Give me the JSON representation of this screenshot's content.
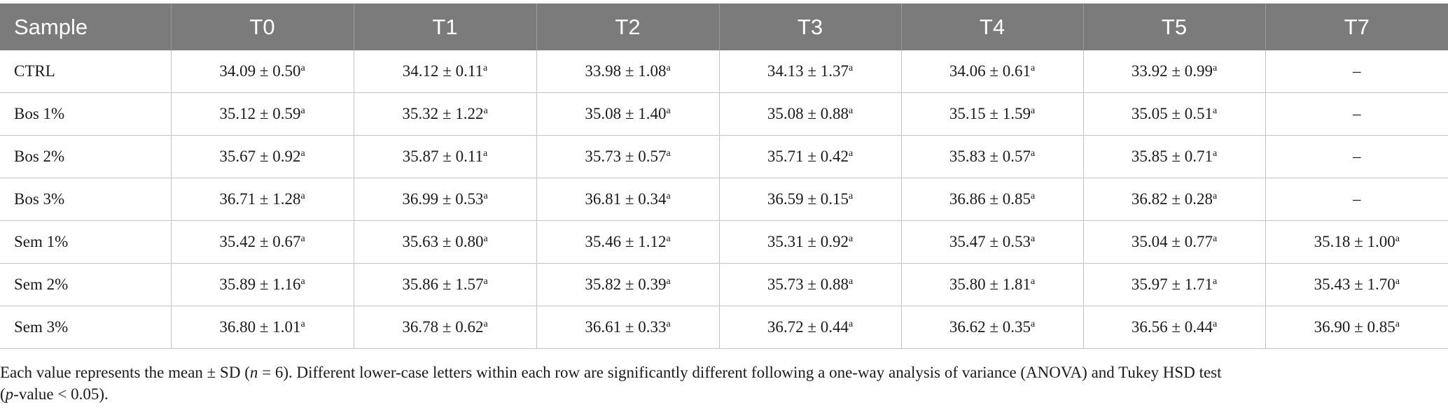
{
  "table": {
    "headers": [
      "Sample",
      "T0",
      "T1",
      "T2",
      "T3",
      "T4",
      "T5",
      "T7"
    ],
    "rows": [
      {
        "label": "CTRL",
        "cells": [
          [
            "34.09 ± 0.50",
            "a"
          ],
          [
            "34.12 ± 0.11",
            "a"
          ],
          [
            "33.98 ± 1.08",
            "a"
          ],
          [
            "34.13 ± 1.37",
            "a"
          ],
          [
            "34.06 ± 0.61",
            "a"
          ],
          [
            "33.92 ± 0.99",
            "a"
          ],
          [
            "–",
            ""
          ]
        ]
      },
      {
        "label": "Bos 1%",
        "cells": [
          [
            "35.12 ± 0.59",
            "a"
          ],
          [
            "35.32 ± 1.22",
            "a"
          ],
          [
            "35.08 ± 1.40",
            "a"
          ],
          [
            "35.08 ± 0.88",
            "a"
          ],
          [
            "35.15 ± 1.59",
            "a"
          ],
          [
            "35.05 ± 0.51",
            "a"
          ],
          [
            "–",
            ""
          ]
        ]
      },
      {
        "label": "Bos 2%",
        "cells": [
          [
            "35.67 ± 0.92",
            "a"
          ],
          [
            "35.87 ± 0.11",
            "a"
          ],
          [
            "35.73 ± 0.57",
            "a"
          ],
          [
            "35.71 ± 0.42",
            "a"
          ],
          [
            "35.83 ± 0.57",
            "a"
          ],
          [
            "35.85 ± 0.71",
            "a"
          ],
          [
            "–",
            ""
          ]
        ]
      },
      {
        "label": "Bos 3%",
        "cells": [
          [
            "36.71 ± 1.28",
            "a"
          ],
          [
            "36.99 ± 0.53",
            "a"
          ],
          [
            "36.81 ± 0.34",
            "a"
          ],
          [
            "36.59 ± 0.15",
            "a"
          ],
          [
            "36.86 ± 0.85",
            "a"
          ],
          [
            "36.82 ± 0.28",
            "a"
          ],
          [
            "–",
            ""
          ]
        ]
      },
      {
        "label": "Sem 1%",
        "cells": [
          [
            "35.42 ± 0.67",
            "a"
          ],
          [
            "35.63 ± 0.80",
            "a"
          ],
          [
            "35.46 ± 1.12",
            "a"
          ],
          [
            "35.31 ± 0.92",
            "a"
          ],
          [
            "35.47 ± 0.53",
            "a"
          ],
          [
            "35.04 ± 0.77",
            "a"
          ],
          [
            "35.18 ± 1.00",
            "a"
          ]
        ]
      },
      {
        "label": "Sem 2%",
        "cells": [
          [
            "35.89 ± 1.16",
            "a"
          ],
          [
            "35.86 ± 1.57",
            "a"
          ],
          [
            "35.82 ± 0.39",
            "a"
          ],
          [
            "35.73 ± 0.88",
            "a"
          ],
          [
            "35.80 ± 1.81",
            "a"
          ],
          [
            "35.97 ± 1.71",
            "a"
          ],
          [
            "35.43 ± 1.70",
            "a"
          ]
        ]
      },
      {
        "label": "Sem 3%",
        "cells": [
          [
            "36.80 ± 1.01",
            "a"
          ],
          [
            "36.78 ± 0.62",
            "a"
          ],
          [
            "36.61 ± 0.33",
            "a"
          ],
          [
            "36.72 ± 0.44",
            "a"
          ],
          [
            "36.62 ± 0.35",
            "a"
          ],
          [
            "36.56 ± 0.44",
            "a"
          ],
          [
            "36.90 ± 0.85",
            "a"
          ]
        ]
      }
    ]
  },
  "footnote": {
    "line1_a": "Each value represents the mean ± SD (",
    "line1_n": "n",
    "line1_b": " = 6). Different lower-case letters within each row are significantly different following a one-way analysis of variance (ANOVA) and Tukey HSD test",
    "line2_open": "(",
    "line2_p": "p",
    "line2_rest": "-value < 0.05)."
  }
}
